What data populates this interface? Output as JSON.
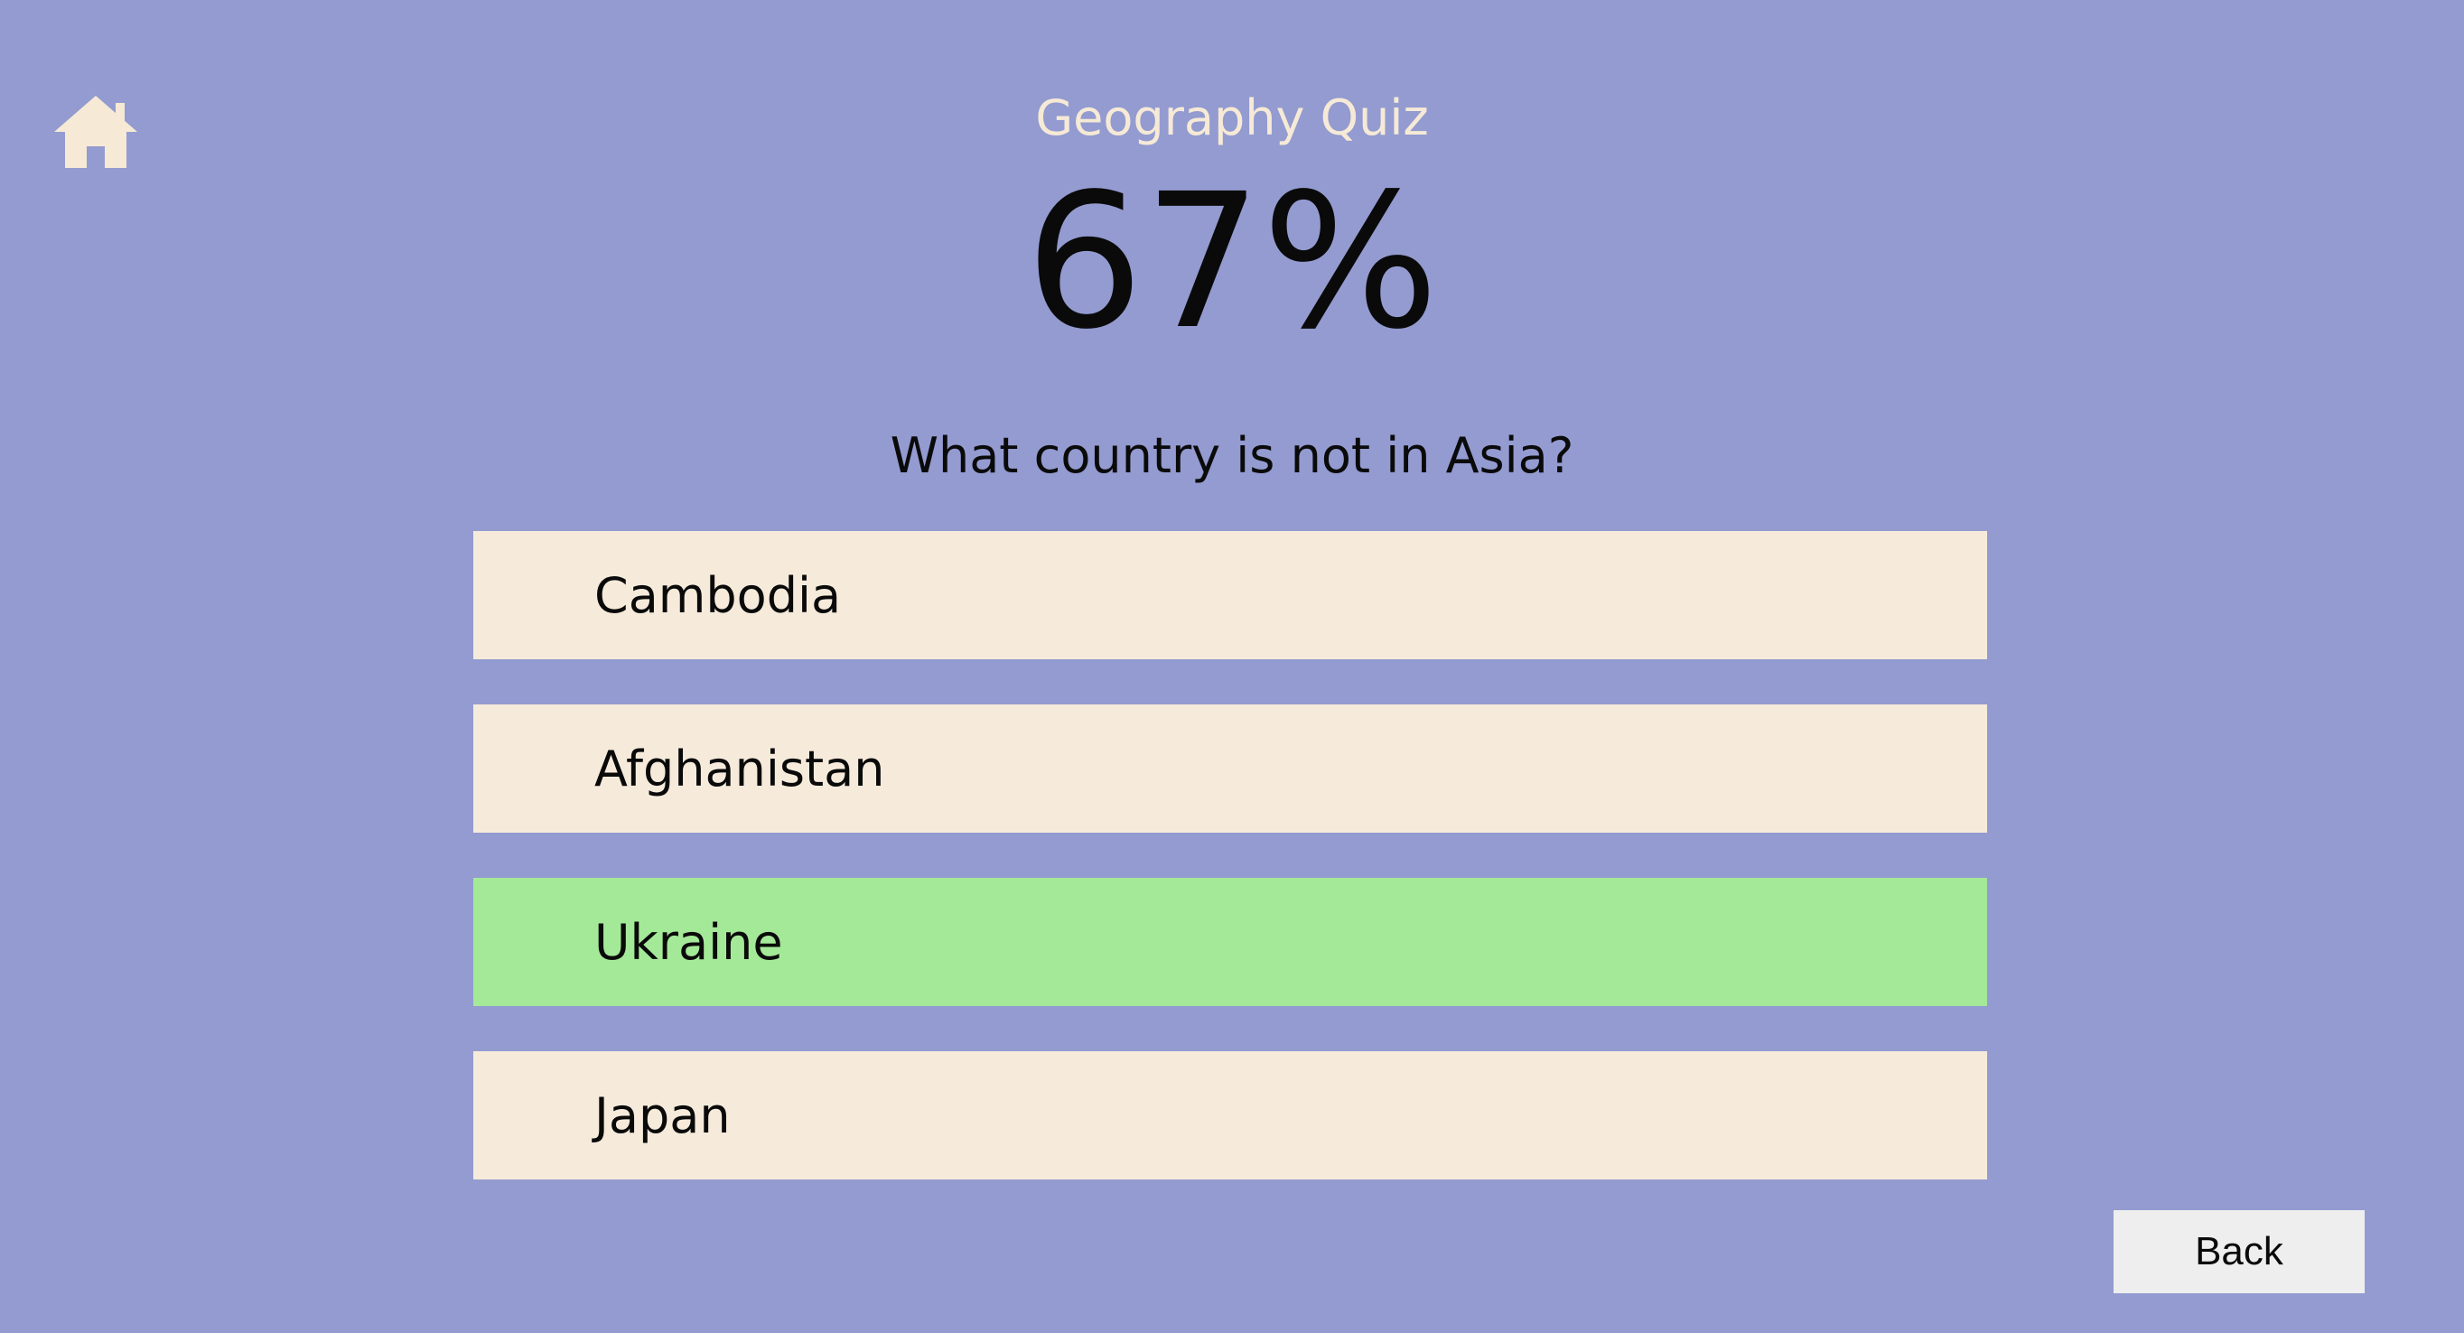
{
  "header": {
    "home_icon": "home-icon",
    "title": "Geography Quiz"
  },
  "score": {
    "value": "67%"
  },
  "question": {
    "text": "What country is not in Asia?"
  },
  "answers": [
    {
      "label": "Cambodia",
      "state": "default"
    },
    {
      "label": "Afghanistan",
      "state": "default"
    },
    {
      "label": "Ukraine",
      "state": "correct"
    },
    {
      "label": "Japan",
      "state": "default"
    }
  ],
  "footer": {
    "back_label": "Back"
  },
  "colors": {
    "background": "#939bd0",
    "title": "#f6ead6",
    "answer_default": "#f6ebdb",
    "answer_correct": "#a4e998",
    "back_button": "#eeeeee"
  }
}
